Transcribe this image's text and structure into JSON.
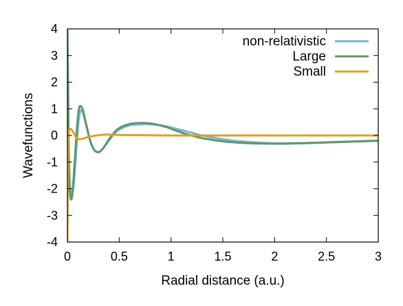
{
  "chart_data": {
    "type": "line",
    "title": "",
    "xlabel": "Radial distance (a.u.)",
    "ylabel": "Wavefunctions",
    "xlim": [
      0,
      3
    ],
    "ylim": [
      -4,
      4
    ],
    "x_ticks": [
      "0",
      "0.5",
      "1",
      "1.5",
      "2",
      "2.5",
      "3"
    ],
    "y_ticks": [
      "-4",
      "-3",
      "-2",
      "-1",
      "0",
      "1",
      "2",
      "3",
      "4"
    ],
    "grid": false,
    "legend_position": "top-right",
    "series": [
      {
        "name": "non-relativistic",
        "color": "#73b5df",
        "x": [
          0.0,
          0.008,
          0.015,
          0.025,
          0.04,
          0.06,
          0.08,
          0.1,
          0.12,
          0.135,
          0.15,
          0.18,
          0.22,
          0.26,
          0.3,
          0.33,
          0.36,
          0.4,
          0.45,
          0.5,
          0.6,
          0.7,
          0.8,
          0.9,
          1.0,
          1.1,
          1.2,
          1.3,
          1.5,
          1.7,
          2.0,
          2.3,
          2.6,
          3.0
        ],
        "y": [
          4.0,
          1.6,
          -0.8,
          -1.9,
          -2.25,
          -1.9,
          -0.9,
          0.2,
          0.85,
          0.95,
          0.85,
          0.4,
          -0.2,
          -0.55,
          -0.62,
          -0.55,
          -0.4,
          -0.2,
          0.05,
          0.22,
          0.38,
          0.42,
          0.42,
          0.38,
          0.3,
          0.2,
          0.1,
          0.0,
          -0.14,
          -0.23,
          -0.29,
          -0.28,
          -0.24,
          -0.19
        ]
      },
      {
        "name": "Large",
        "color": "#5a9a68",
        "x": [
          0.0,
          0.006,
          0.012,
          0.02,
          0.03,
          0.045,
          0.06,
          0.08,
          0.1,
          0.115,
          0.13,
          0.15,
          0.18,
          0.22,
          0.26,
          0.3,
          0.33,
          0.36,
          0.4,
          0.45,
          0.5,
          0.6,
          0.7,
          0.78,
          0.85,
          0.95,
          1.05,
          1.15,
          1.3,
          1.5,
          1.7,
          2.0,
          2.3,
          2.6,
          3.0
        ],
        "y": [
          4.0,
          1.8,
          -0.5,
          -1.8,
          -2.35,
          -2.3,
          -1.6,
          -0.4,
          0.65,
          1.05,
          1.1,
          0.95,
          0.45,
          -0.2,
          -0.55,
          -0.63,
          -0.55,
          -0.4,
          -0.15,
          0.1,
          0.28,
          0.43,
          0.47,
          0.46,
          0.42,
          0.32,
          0.18,
          0.05,
          -0.1,
          -0.22,
          -0.28,
          -0.31,
          -0.29,
          -0.25,
          -0.2
        ]
      },
      {
        "name": "Small",
        "color": "#e0a020",
        "x": [
          0.0,
          0.004,
          0.008,
          0.013,
          0.02,
          0.03,
          0.045,
          0.06,
          0.08,
          0.1,
          0.12,
          0.15,
          0.2,
          0.25,
          0.3,
          0.35,
          0.4,
          0.5,
          0.7,
          1.0,
          1.5,
          2.0,
          2.5,
          3.0
        ],
        "y": [
          -4.0,
          -1.5,
          -0.3,
          0.1,
          0.2,
          0.25,
          0.2,
          0.1,
          -0.05,
          -0.12,
          -0.14,
          -0.12,
          -0.06,
          -0.02,
          0.01,
          0.03,
          0.03,
          0.02,
          0.01,
          0.0,
          0.0,
          0.0,
          0.0,
          0.0
        ]
      }
    ]
  }
}
